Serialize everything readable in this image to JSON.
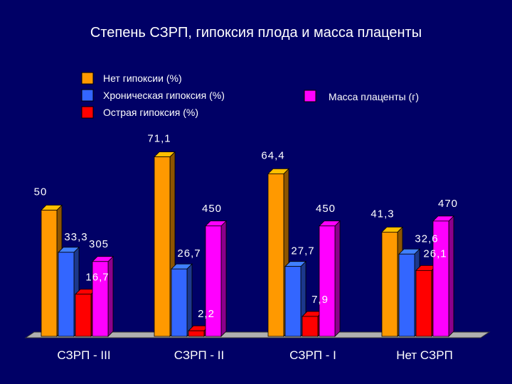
{
  "chart_data": {
    "type": "bar",
    "title": "Степень СЗРП, гипоксия плода и масса плаценты",
    "categories": [
      "СЗРП - III",
      "СЗРП - II",
      "СЗРП - I",
      "Нет СЗРП"
    ],
    "series": [
      {
        "name": "Нет гипоксии (%)",
        "color": "#ff9900",
        "values": [
          50,
          71.1,
          64.4,
          41.3
        ],
        "labels": [
          "50",
          "71,1",
          "64,4",
          "41,3"
        ]
      },
      {
        "name": "Хроническая гипоксия (%)",
        "color": "#3366ff",
        "values": [
          33.3,
          26.7,
          27.7,
          32.6
        ],
        "labels": [
          "33,3",
          "26,7",
          "27,7",
          "32,6"
        ]
      },
      {
        "name": "Острая гипоксия (%)",
        "color": "#ff0000",
        "values": [
          16.7,
          2.2,
          7.9,
          26.1
        ],
        "labels": [
          "16,7",
          "2,2",
          "7,9",
          "26,1"
        ]
      },
      {
        "name": "Масса плаценты (г)",
        "color": "#ff00ff",
        "values": [
          305,
          450,
          450,
          470
        ],
        "labels": [
          "305",
          "450",
          "450",
          "470"
        ]
      }
    ],
    "legend": [
      "top-left",
      "top-right"
    ],
    "grid": false,
    "render_3d": true
  }
}
